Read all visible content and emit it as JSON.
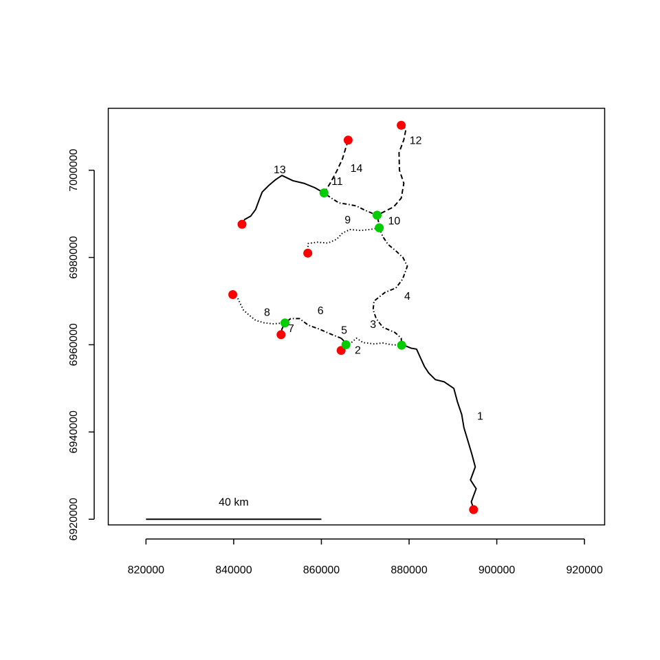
{
  "plot": {
    "x_range": [
      811400,
      924600
    ],
    "y_range": [
      6918700,
      7014200
    ]
  },
  "axes": {
    "x_ticks": [
      {
        "value": 820000,
        "label": "820000"
      },
      {
        "value": 840000,
        "label": "840000"
      },
      {
        "value": 860000,
        "label": "860000"
      },
      {
        "value": 880000,
        "label": "880000"
      },
      {
        "value": 900000,
        "label": "900000"
      },
      {
        "value": 920000,
        "label": "920000"
      }
    ],
    "y_ticks": [
      {
        "value": 6920000,
        "label": "6920000"
      },
      {
        "value": 6940000,
        "label": "6940000"
      },
      {
        "value": 6960000,
        "label": "6960000"
      },
      {
        "value": 6980000,
        "label": "6980000"
      },
      {
        "value": 7000000,
        "label": "7000000"
      }
    ]
  },
  "scale_bar": {
    "start": 820000,
    "end": 860000,
    "y": 6920000,
    "label": "40 km"
  },
  "colors": {
    "source_point": "#ff0000",
    "junction_point": "#00cc00",
    "line": "#000000"
  },
  "segments": [
    {
      "id": "1",
      "label": "1",
      "style": "solid",
      "label_at": [
        896200,
        6943500
      ],
      "points": [
        [
          894700,
          6922400
        ],
        [
          894200,
          6924000
        ],
        [
          895300,
          6927000
        ],
        [
          894000,
          6929000
        ],
        [
          895100,
          6932000
        ],
        [
          894300,
          6935000
        ],
        [
          893400,
          6938000
        ],
        [
          892500,
          6941000
        ],
        [
          892000,
          6944000
        ],
        [
          891000,
          6947000
        ],
        [
          890200,
          6950000
        ],
        [
          888000,
          6951500
        ],
        [
          886000,
          6952000
        ],
        [
          884500,
          6953500
        ],
        [
          883500,
          6955000
        ],
        [
          882600,
          6957000
        ],
        [
          881700,
          6959000
        ],
        [
          880500,
          6959200
        ],
        [
          879000,
          6959800
        ],
        [
          878300,
          6959900
        ]
      ]
    },
    {
      "id": "2",
      "label": "2",
      "style": "dashed",
      "label_at": [
        868300,
        6958600
      ],
      "points": [
        [
          864500,
          6958700
        ],
        [
          865200,
          6959400
        ],
        [
          865600,
          6960000
        ]
      ]
    },
    {
      "id": "3",
      "label": "3",
      "style": "dotted",
      "label_at": [
        871800,
        6964500
      ],
      "points": [
        [
          865600,
          6960000
        ],
        [
          866500,
          6960200
        ],
        [
          868000,
          6961500
        ],
        [
          869500,
          6960500
        ],
        [
          872000,
          6960200
        ],
        [
          874000,
          6960400
        ],
        [
          876000,
          6960000
        ],
        [
          878300,
          6959900
        ]
      ]
    },
    {
      "id": "4",
      "label": "4",
      "style": "dotdash",
      "label_at": [
        879600,
        6971000
      ],
      "points": [
        [
          878300,
          6959900
        ],
        [
          878200,
          6961500
        ],
        [
          876800,
          6962800
        ],
        [
          874000,
          6964000
        ],
        [
          872500,
          6966000
        ],
        [
          871800,
          6968000
        ],
        [
          872000,
          6970000
        ],
        [
          874500,
          6972000
        ],
        [
          877000,
          6973000
        ],
        [
          878500,
          6975000
        ],
        [
          879600,
          6978000
        ],
        [
          878600,
          6980000
        ],
        [
          877000,
          6981500
        ],
        [
          875200,
          6983000
        ],
        [
          874000,
          6984800
        ],
        [
          873200,
          6986800
        ]
      ]
    },
    {
      "id": "5",
      "label": "5",
      "style": "dashed",
      "label_at": [
        865200,
        6963200
      ],
      "points": [
        [
          864500,
          6961500
        ],
        [
          865000,
          6961000
        ],
        [
          865600,
          6960000
        ]
      ]
    },
    {
      "id": "6",
      "label": "6",
      "style": "dotdash",
      "label_at": [
        859800,
        6967700
      ],
      "points": [
        [
          851700,
          6965000
        ],
        [
          853000,
          6966000
        ],
        [
          855000,
          6966000
        ],
        [
          857000,
          6964500
        ],
        [
          859500,
          6963600
        ],
        [
          862000,
          6962500
        ],
        [
          864500,
          6961500
        ]
      ]
    },
    {
      "id": "7",
      "label": "7",
      "style": "solid",
      "label_at": [
        853100,
        6963600
      ],
      "points": [
        [
          850800,
          6962300
        ],
        [
          851000,
          6963600
        ],
        [
          851700,
          6965000
        ]
      ]
    },
    {
      "id": "8",
      "label": "8",
      "style": "dotted",
      "label_at": [
        847600,
        6967300
      ],
      "points": [
        [
          839800,
          6971500
        ],
        [
          841000,
          6970500
        ],
        [
          842200,
          6968000
        ],
        [
          843500,
          6966800
        ],
        [
          845000,
          6965600
        ],
        [
          847000,
          6965000
        ],
        [
          849000,
          6964800
        ],
        [
          851700,
          6965000
        ]
      ]
    },
    {
      "id": "9",
      "label": "9",
      "style": "dotted",
      "label_at": [
        866000,
        6988500
      ],
      "points": [
        [
          856900,
          6981000
        ],
        [
          857000,
          6983200
        ],
        [
          859000,
          6983500
        ],
        [
          861500,
          6983300
        ],
        [
          863500,
          6984200
        ],
        [
          864800,
          6985600
        ],
        [
          866500,
          6986400
        ],
        [
          869000,
          6986200
        ],
        [
          871000,
          6986400
        ],
        [
          873200,
          6986800
        ]
      ]
    },
    {
      "id": "10",
      "label": "10",
      "style": "dotdash",
      "label_at": [
        876600,
        6988200
      ],
      "points": [
        [
          872700,
          6989700
        ],
        [
          873000,
          6988300
        ],
        [
          873200,
          6986800
        ]
      ]
    },
    {
      "id": "11",
      "label": "11",
      "style": "dotdash",
      "label_at": [
        863600,
        6997300
      ],
      "points": [
        [
          860600,
          6994800
        ],
        [
          862000,
          6993800
        ],
        [
          864000,
          6992500
        ],
        [
          866000,
          6992200
        ],
        [
          868000,
          6991800
        ],
        [
          870000,
          6990800
        ],
        [
          872700,
          6989700
        ]
      ]
    },
    {
      "id": "12",
      "label": "12",
      "style": "dashed",
      "label_at": [
        881500,
        7006700
      ],
      "points": [
        [
          878200,
          7010300
        ],
        [
          879300,
          7009500
        ],
        [
          878800,
          7007000
        ],
        [
          877700,
          7004000
        ],
        [
          877800,
          7000000
        ],
        [
          878800,
          6997000
        ],
        [
          878200,
          6993600
        ],
        [
          876500,
          6991600
        ],
        [
          874500,
          6990600
        ],
        [
          872700,
          6989700
        ]
      ]
    },
    {
      "id": "13",
      "label": "13",
      "style": "solid",
      "label_at": [
        850500,
        7000000
      ],
      "points": [
        [
          841900,
          6987600
        ],
        [
          842500,
          6988700
        ],
        [
          843900,
          6989500
        ],
        [
          845000,
          6991000
        ],
        [
          845800,
          6993200
        ],
        [
          846500,
          6995000
        ],
        [
          848000,
          6996500
        ],
        [
          849500,
          6997800
        ],
        [
          851000,
          6998800
        ],
        [
          853500,
          6997600
        ],
        [
          856000,
          6997000
        ],
        [
          858500,
          6996000
        ],
        [
          860600,
          6994800
        ]
      ]
    },
    {
      "id": "14",
      "label": "14",
      "style": "dashed",
      "label_at": [
        868000,
        7000300
      ],
      "points": [
        [
          860600,
          6994800
        ],
        [
          862000,
          6997000
        ],
        [
          863500,
          6999800
        ],
        [
          864800,
          7002600
        ],
        [
          866100,
          7006900
        ]
      ]
    }
  ],
  "nodes": [
    {
      "type": "source",
      "x": 894700,
      "y": 6922200
    },
    {
      "type": "source",
      "x": 864500,
      "y": 6958700
    },
    {
      "type": "source",
      "x": 850800,
      "y": 6962300
    },
    {
      "type": "source",
      "x": 839800,
      "y": 6971500
    },
    {
      "type": "source",
      "x": 856900,
      "y": 6981000
    },
    {
      "type": "source",
      "x": 841900,
      "y": 6987600
    },
    {
      "type": "source",
      "x": 866100,
      "y": 7006900
    },
    {
      "type": "source",
      "x": 878200,
      "y": 7010300
    },
    {
      "type": "junction",
      "x": 878300,
      "y": 6959900
    },
    {
      "type": "junction",
      "x": 865600,
      "y": 6960000
    },
    {
      "type": "junction",
      "x": 851700,
      "y": 6965000
    },
    {
      "type": "junction",
      "x": 873200,
      "y": 6986800
    },
    {
      "type": "junction",
      "x": 872700,
      "y": 6989700
    },
    {
      "type": "junction",
      "x": 860600,
      "y": 6994800
    }
  ]
}
